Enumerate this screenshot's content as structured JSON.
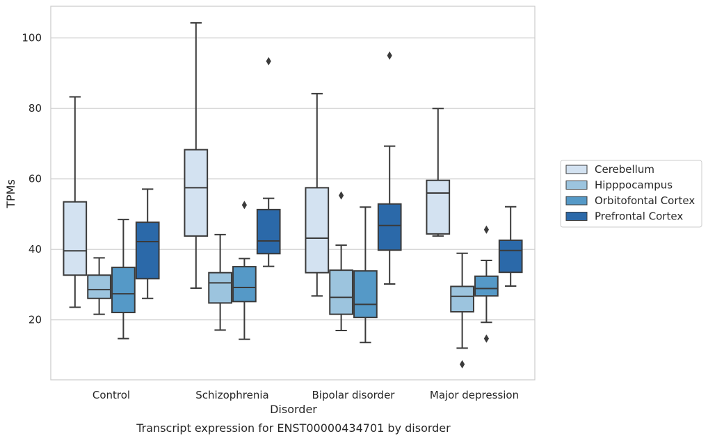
{
  "chart_data": {
    "type": "box",
    "title": "Transcript expression for ENST00000434701 by disorder",
    "xlabel": "Disorder",
    "ylabel": "TPMs",
    "ylim": [
      3,
      109
    ],
    "yticks": [
      20,
      40,
      60,
      80,
      100
    ],
    "grid": "horizontal",
    "legend_position": "right",
    "categories": [
      "Control",
      "Schizophrenia",
      "Bipolar disorder",
      "Major depression"
    ],
    "colors": {
      "Cerebellum": "#d3e2f1",
      "Hipppocampus": "#9cc4de",
      "Orbitofontal Cortex": "#5599c7",
      "Prefrontal Cortex": "#2b69a9",
      "line": "#3a3a3a",
      "grid": "#cccccc",
      "frame": "#cccccc"
    },
    "series": [
      {
        "name": "Cerebellum",
        "boxes": [
          {
            "whislo": 23.6,
            "q1": 32.7,
            "med": 39.6,
            "q3": 53.5,
            "whishi": 83.3,
            "fliers": []
          },
          {
            "whislo": 29.0,
            "q1": 43.8,
            "med": 57.5,
            "q3": 68.3,
            "whishi": 104.3,
            "fliers": []
          },
          {
            "whislo": 26.8,
            "q1": 33.4,
            "med": 43.2,
            "q3": 57.5,
            "whishi": 84.2,
            "fliers": []
          },
          {
            "whislo": 43.8,
            "q1": 44.4,
            "med": 56.0,
            "q3": 59.6,
            "whishi": 80.0,
            "fliers": []
          }
        ]
      },
      {
        "name": "Hipppocampus",
        "boxes": [
          {
            "whislo": 21.6,
            "q1": 26.1,
            "med": 28.6,
            "q3": 32.7,
            "whishi": 37.6,
            "fliers": []
          },
          {
            "whislo": 17.1,
            "q1": 24.8,
            "med": 30.5,
            "q3": 33.4,
            "whishi": 44.2,
            "fliers": []
          },
          {
            "whislo": 17.0,
            "q1": 21.6,
            "med": 26.4,
            "q3": 34.1,
            "whishi": 41.2,
            "fliers": [
              55.3
            ]
          },
          {
            "whislo": 12.0,
            "q1": 22.3,
            "med": 26.7,
            "q3": 29.5,
            "whishi": 38.9,
            "fliers": [
              7.4
            ]
          }
        ]
      },
      {
        "name": "Orbitofontal Cortex",
        "boxes": [
          {
            "whislo": 14.7,
            "q1": 22.1,
            "med": 27.4,
            "q3": 34.9,
            "whishi": 48.5,
            "fliers": []
          },
          {
            "whislo": 14.5,
            "q1": 25.2,
            "med": 29.2,
            "q3": 35.1,
            "whishi": 37.4,
            "fliers": [
              52.6
            ]
          },
          {
            "whislo": 13.6,
            "q1": 20.7,
            "med": 24.4,
            "q3": 33.9,
            "whishi": 52.0,
            "fliers": []
          },
          {
            "whislo": 19.3,
            "q1": 26.8,
            "med": 28.9,
            "q3": 32.4,
            "whishi": 36.9,
            "fliers": [
              45.6,
              14.7
            ]
          }
        ]
      },
      {
        "name": "Prefrontal Cortex",
        "boxes": [
          {
            "whislo": 26.1,
            "q1": 31.7,
            "med": 42.2,
            "q3": 47.7,
            "whishi": 57.1,
            "fliers": []
          },
          {
            "whislo": 35.2,
            "q1": 38.8,
            "med": 42.4,
            "q3": 51.3,
            "whishi": 54.5,
            "fliers": [
              93.4
            ]
          },
          {
            "whislo": 30.2,
            "q1": 39.8,
            "med": 46.8,
            "q3": 52.9,
            "whishi": 69.3,
            "fliers": [
              95.0
            ]
          },
          {
            "whislo": 29.6,
            "q1": 33.5,
            "med": 39.7,
            "q3": 42.6,
            "whishi": 52.1,
            "fliers": []
          }
        ]
      }
    ]
  }
}
